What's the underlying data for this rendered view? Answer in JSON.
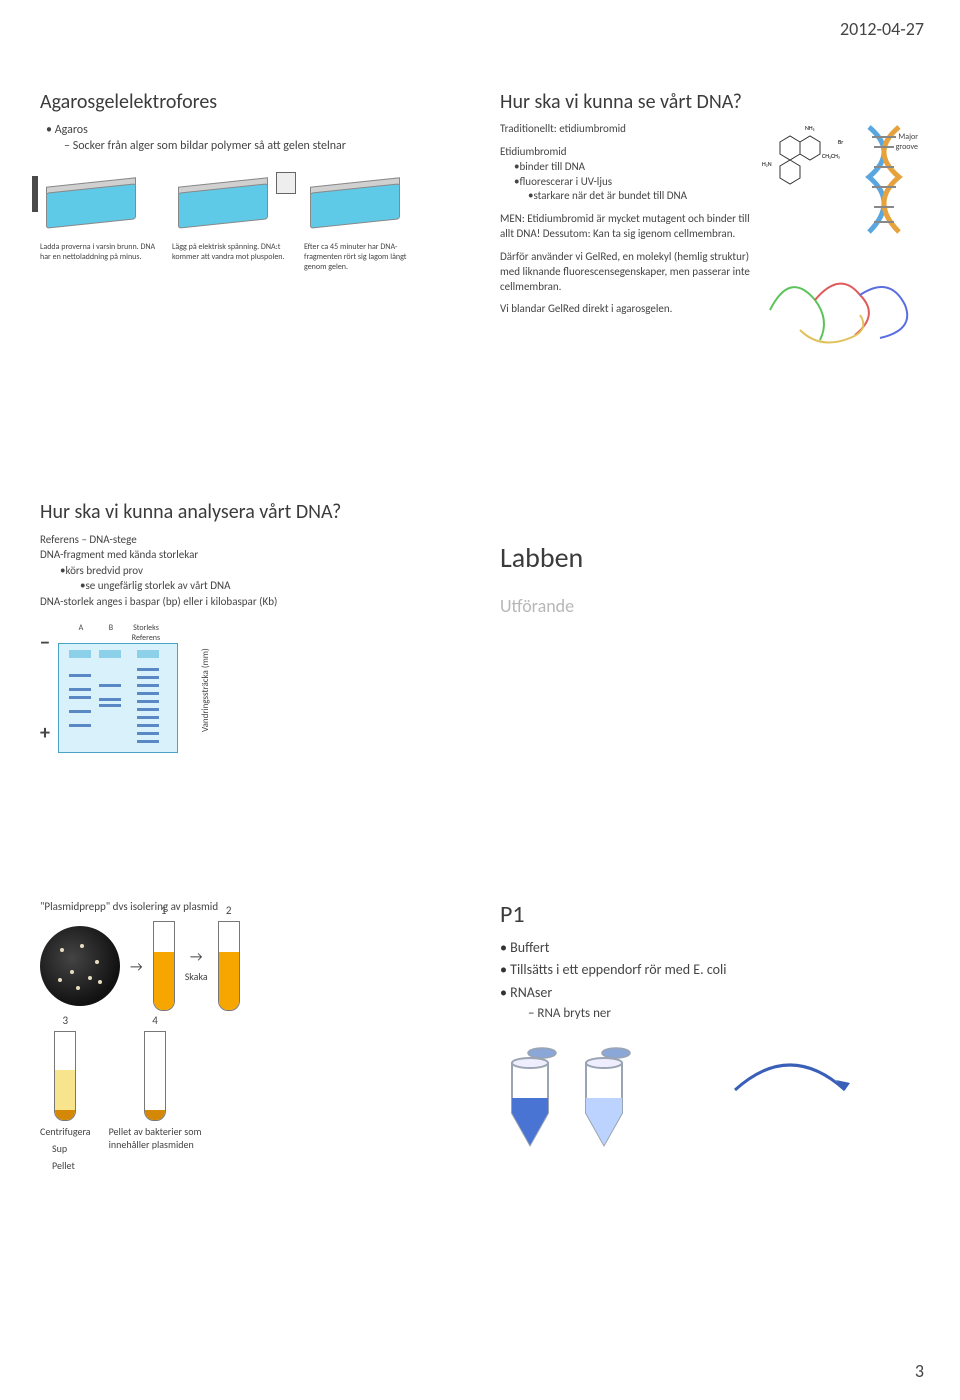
{
  "meta": {
    "date": "2012-04-27",
    "page": "3"
  },
  "s1": {
    "title": "Agarosgelelektrofores",
    "bullet": "Agaros",
    "sub1": "Socker från alger som bildar polymer så att gelen stelnar",
    "cap1": "Ladda proverna i varsin brunn. DNA har en nettoladdning på minus.",
    "cap2": "Lägg på elektrisk spänning. DNA:t kommer att vandra mot pluspolen.",
    "cap3": "Efter ca 45 minuter har DNA-fragmenten rört sig lagom långt genom gelen."
  },
  "s2": {
    "title": "Hur ska vi kunna se vårt DNA?",
    "trad": "Traditionellt: etidiumbromid",
    "etbr": "Etidiumbromid",
    "etbr_b1": "binder till DNA",
    "etbr_b2": "fluorescerar  i UV-ljus",
    "etbr_b3": "starkare när det är bundet till DNA",
    "men": "MEN: Etidiumbromid är mycket mutagent och binder till allt DNA! Dessutom: Kan ta sig igenom cellmembran.",
    "gelred": "Därför använder vi GelRed, en molekyl (hemlig struktur) med liknande fluorescensegenskaper, men passerar inte cellmembran.",
    "blandar": "Vi blandar GelRed direkt i agarosgelen.",
    "major_groove": "Major groove",
    "br": "Br",
    "nh2": "NH₂",
    "h2n": "H₂N",
    "ch3": "CH₂CH₃",
    "colors": {
      "helixA": "#5aa7e0",
      "helixB": "#e6a23c",
      "prot1": "#5cc45c",
      "prot2": "#e05a5a",
      "prot3": "#5a6ee0",
      "prot4": "#e0c15a"
    }
  },
  "s3": {
    "title": "Hur ska vi kunna analysera vårt DNA?",
    "ref": "Referens – DNA-stege",
    "frag": "DNA-fragment med kända storlekar",
    "kors": "körs bredvid prov",
    "se": "se ungefärlig storlek av vårt DNA",
    "size": "DNA-storlek anges i baspar (bp) eller i kilobaspar (Kb)",
    "A": "A",
    "B": "B",
    "refhead_l1": "Storleks",
    "refhead_l2": "Referens",
    "minus": "−",
    "plus": "+",
    "ylabel": "Vandringssträcka (mm)",
    "gel": {
      "bg": "#d9f1fb",
      "border": "#4aa3c7",
      "band": "#5a88c4",
      "well": "#8cd0ea",
      "wells_x": [
        10,
        40,
        78
      ],
      "bandsA": [
        30,
        44,
        52,
        66,
        80
      ],
      "bandsB": [
        40,
        54,
        60
      ],
      "bandsR": [
        24,
        32,
        40,
        48,
        56,
        64,
        72,
        80,
        88,
        96
      ]
    }
  },
  "s4": {
    "title": "Labben",
    "sub": "Utförande"
  },
  "s5": {
    "title": "\"Plasmidprepp\" dvs isolering av plasmid",
    "n1": "1",
    "n2": "2",
    "n3": "3",
    "n4": "4",
    "skaka": "Skaka",
    "centrifuge": "Centrifugera",
    "sup": "Sup",
    "pellet": "Pellet",
    "pelletdesc_l1": "Pellet av bakterier som",
    "pelletdesc_l2": "innehåller plasmiden",
    "colors": {
      "tube1": "#f7a600",
      "tube2": "#f7a600",
      "tube3_sup": "#f7e48c",
      "tube3_pel": "#d48806",
      "tube4_pel": "#d48806"
    }
  },
  "s6": {
    "title": "P1",
    "b1": "Buffert",
    "b2": "Tillsätts i ett eppendorf  rör med E. coli",
    "b3": "RNAser",
    "b3s": "RNA bryts ner",
    "colors": {
      "liq1": "#4a74d4",
      "liq2": "#bcd3ff",
      "lid": "#8aa7d8",
      "arrow": "#3a5fb8"
    }
  }
}
